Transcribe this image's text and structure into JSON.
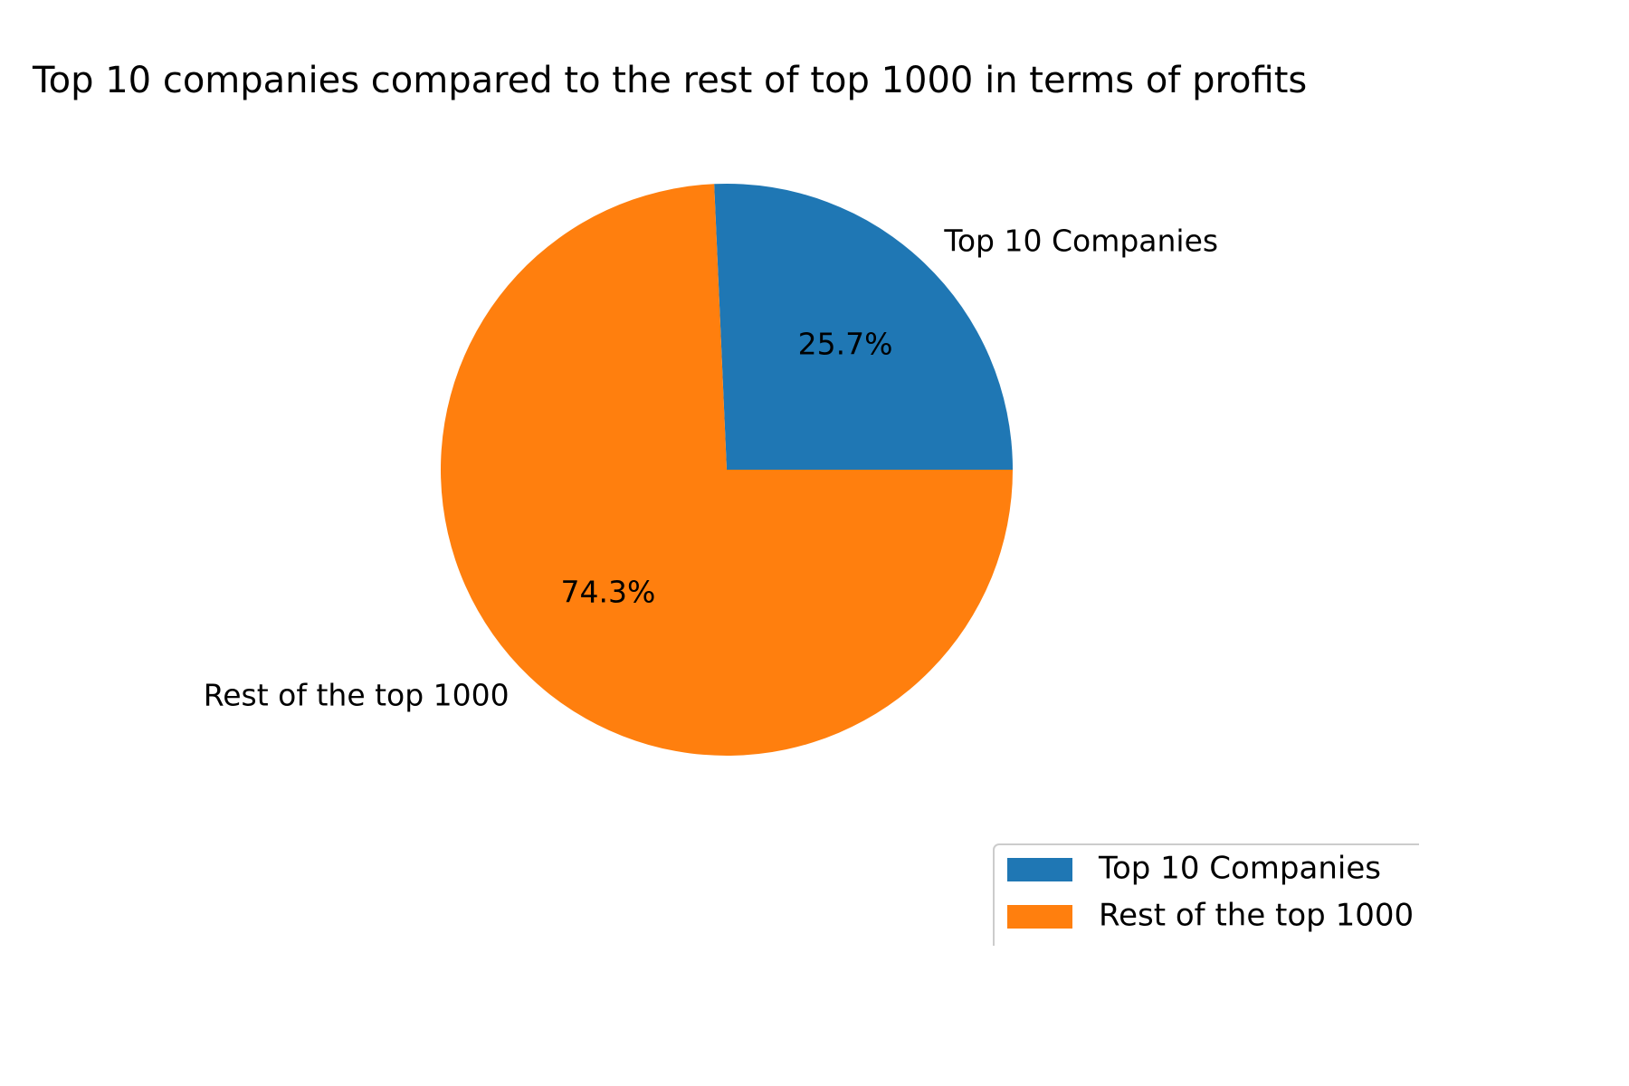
{
  "chart_data": {
    "type": "pie",
    "title": "Top 10 companies compared to the rest of top 1000 in terms of profits",
    "slices": [
      {
        "label": "Top 10 Companies",
        "value": 25.7,
        "pct_label": "25.7%",
        "color": "#1f77b4"
      },
      {
        "label": "Rest of the top 1000",
        "value": 74.3,
        "pct_label": "74.3%",
        "color": "#ff7f0e"
      }
    ],
    "start_angle_deg": 0,
    "direction": "counterclockwise",
    "legend": {
      "placement": "bottom-right",
      "entries": [
        "Top 10 Companies",
        "Rest of the top 1000"
      ]
    }
  }
}
